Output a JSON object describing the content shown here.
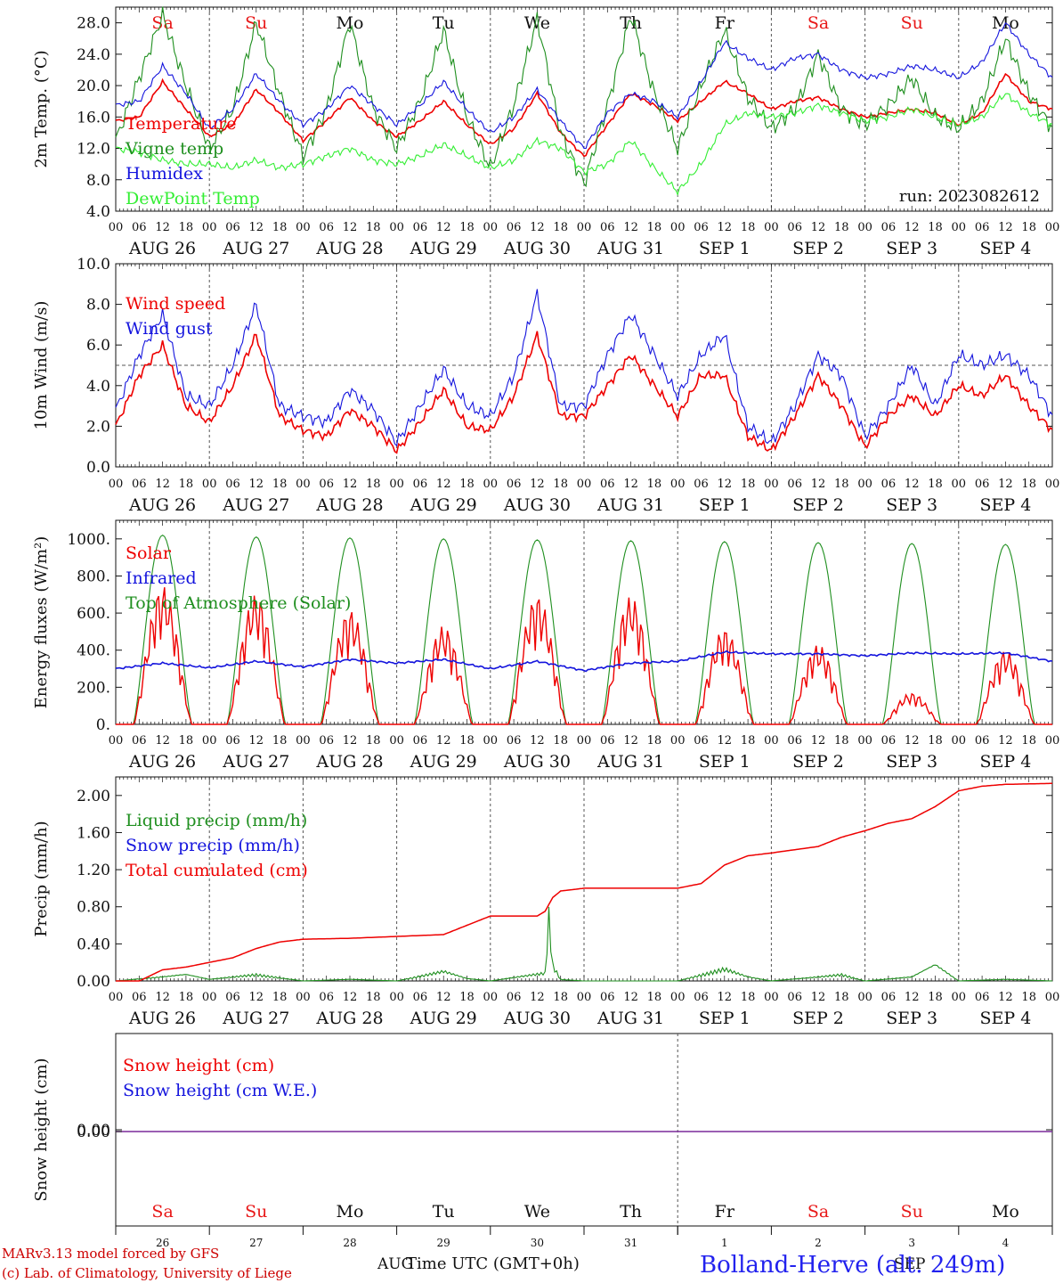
{
  "colors": {
    "red": "#ee0000",
    "green": "#1f8f1f",
    "lightgreen": "#33ee33",
    "blue": "#1414dd",
    "purple": "#7a2a9a",
    "weekend": "#e81818",
    "weekday": "#111111",
    "footer_red": "#cc0000",
    "station": "#2222ee"
  },
  "date_labels": [
    "AUG 26",
    "AUG 27",
    "AUG 28",
    "AUG 29",
    "AUG 30",
    "AUG 31",
    "SEP  1",
    "SEP  2",
    "SEP  3",
    "SEP  4"
  ],
  "hour_ticks": [
    "00",
    "06",
    "12",
    "18"
  ],
  "weekdays": [
    {
      "label": "Sa",
      "weekend": true
    },
    {
      "label": "Su",
      "weekend": true
    },
    {
      "label": "Mo",
      "weekend": false
    },
    {
      "label": "Tu",
      "weekend": false
    },
    {
      "label": "We",
      "weekend": false
    },
    {
      "label": "Th",
      "weekend": false
    },
    {
      "label": "Fr",
      "weekend": false
    },
    {
      "label": "Sa",
      "weekend": true
    },
    {
      "label": "Su",
      "weekend": true
    },
    {
      "label": "Mo",
      "weekend": false
    }
  ],
  "bottom_days": [
    "26",
    "27",
    "28",
    "29",
    "30",
    "31",
    "1",
    "2",
    "3",
    "4"
  ],
  "bottom_months": {
    "left": "AUG",
    "right": "SEP"
  },
  "footer": {
    "model": "MARv3.13 model forced by GFS",
    "copyright": "(c) Lab. of Climatology, University of Liege",
    "xlabel": "Time UTC (GMT+0h)",
    "station": "Bolland-Herve (alt. 249m)"
  },
  "chart_data": [
    {
      "type": "line",
      "ylabel": "2m Temp. (°C)",
      "ylim": [
        4,
        30
      ],
      "yticks": [
        "4.0",
        "8.0",
        "12.0",
        "16.0",
        "20.0",
        "24.0",
        "28.0"
      ],
      "annotation": "run: 2023082612",
      "x_hours": [
        0,
        6,
        12,
        18,
        24,
        30,
        36,
        42,
        48,
        54,
        60,
        66,
        72,
        78,
        84,
        90,
        96,
        102,
        108,
        114,
        120,
        126,
        132,
        138,
        144,
        150,
        156,
        162,
        168,
        174,
        180,
        186,
        192,
        198,
        204,
        210,
        216,
        222,
        228,
        234,
        240
      ],
      "series": [
        {
          "name": "Temperature",
          "color": "red",
          "values": [
            15.5,
            16.0,
            20.5,
            17.0,
            13.5,
            15.0,
            19.5,
            16.5,
            13.0,
            15.5,
            18.5,
            15.5,
            13.5,
            15.5,
            18.0,
            15.0,
            12.5,
            14.5,
            19.0,
            14.0,
            11.0,
            15.0,
            19.0,
            17.5,
            15.5,
            18.0,
            20.5,
            19.0,
            17.0,
            18.0,
            18.5,
            17.0,
            16.0,
            16.5,
            17.0,
            16.5,
            15.0,
            16.5,
            21.5,
            18.0,
            17.0
          ]
        },
        {
          "name": "Vigne temp",
          "color": "green",
          "values": [
            13.0,
            21.0,
            29.0,
            20.0,
            12.0,
            17.0,
            28.0,
            19.0,
            11.0,
            17.0,
            28.0,
            17.0,
            12.0,
            18.0,
            27.0,
            16.0,
            9.5,
            17.5,
            28.5,
            14.0,
            7.5,
            17.5,
            29.0,
            19.0,
            12.0,
            20.0,
            27.0,
            18.5,
            14.5,
            17.0,
            24.0,
            17.0,
            15.0,
            17.5,
            21.0,
            16.0,
            14.5,
            18.0,
            26.0,
            19.0,
            14.5
          ]
        },
        {
          "name": "Humidex",
          "color": "blue",
          "values": [
            17.5,
            18.0,
            22.5,
            19.0,
            14.5,
            17.0,
            21.5,
            18.0,
            15.0,
            17.0,
            20.0,
            17.5,
            15.0,
            17.5,
            20.5,
            17.0,
            14.0,
            16.0,
            19.5,
            15.5,
            12.0,
            16.5,
            19.0,
            18.0,
            16.0,
            20.5,
            25.5,
            23.5,
            22.0,
            23.5,
            24.0,
            22.0,
            21.0,
            21.5,
            22.5,
            22.0,
            21.0,
            23.0,
            28.0,
            24.0,
            21.0
          ]
        },
        {
          "name": "DewPoint Temp",
          "color": "lightgreen",
          "values": [
            12.0,
            11.5,
            10.5,
            10.0,
            10.0,
            9.5,
            10.5,
            9.5,
            10.0,
            11.0,
            12.0,
            10.5,
            10.0,
            11.0,
            12.5,
            11.0,
            9.5,
            10.5,
            13.0,
            12.0,
            9.0,
            10.0,
            13.0,
            9.5,
            6.5,
            10.0,
            15.0,
            16.5,
            16.0,
            16.5,
            17.5,
            16.5,
            15.5,
            16.0,
            17.0,
            16.0,
            15.0,
            16.0,
            19.0,
            16.5,
            15.0
          ]
        }
      ]
    },
    {
      "type": "line",
      "ylabel": "10m Wind (m/s)",
      "ylim": [
        0,
        10
      ],
      "yticks": [
        "0.0",
        "2.0",
        "4.0",
        "6.0",
        "8.0",
        "10.0"
      ],
      "reference_line": 5.0,
      "x_hours": [
        0,
        6,
        12,
        18,
        24,
        30,
        36,
        42,
        48,
        54,
        60,
        66,
        72,
        78,
        84,
        90,
        96,
        102,
        108,
        114,
        120,
        126,
        132,
        138,
        144,
        150,
        156,
        162,
        168,
        174,
        180,
        186,
        192,
        198,
        204,
        210,
        216,
        222,
        228,
        234,
        240
      ],
      "series": [
        {
          "name": "Wind speed",
          "color": "red",
          "values": [
            2.0,
            4.5,
            6.0,
            3.0,
            2.2,
            4.0,
            6.5,
            2.5,
            1.8,
            1.5,
            2.8,
            2.0,
            0.8,
            2.2,
            3.8,
            2.0,
            1.8,
            3.5,
            6.5,
            2.5,
            2.5,
            4.0,
            5.5,
            4.0,
            2.5,
            4.5,
            4.5,
            1.5,
            0.8,
            2.5,
            4.5,
            3.0,
            1.0,
            2.5,
            3.5,
            2.5,
            4.0,
            3.5,
            4.5,
            3.0,
            1.8
          ]
        },
        {
          "name": "Wind gust",
          "color": "blue",
          "values": [
            2.8,
            5.5,
            7.5,
            3.5,
            3.0,
            5.0,
            8.0,
            3.0,
            2.5,
            2.2,
            3.8,
            2.8,
            1.2,
            3.0,
            4.8,
            3.0,
            2.5,
            4.5,
            8.5,
            3.0,
            3.0,
            5.5,
            7.5,
            5.5,
            3.5,
            5.5,
            6.5,
            2.0,
            1.2,
            3.0,
            5.5,
            4.5,
            1.5,
            3.0,
            5.0,
            3.0,
            5.5,
            5.0,
            5.5,
            4.5,
            2.5
          ]
        }
      ]
    },
    {
      "type": "line",
      "ylabel": "Energy fluxes (W/m²)",
      "ylim": [
        0,
        1100
      ],
      "yticks": [
        "0.",
        "200.",
        "400.",
        "600.",
        "800.",
        "1000."
      ],
      "series": [
        {
          "name": "Solar",
          "color": "red",
          "peaks": [
            750,
            700,
            620,
            530,
            700,
            690,
            520,
            430,
            170,
            400
          ]
        },
        {
          "name": "Infrared",
          "color": "blue",
          "x_hours": [
            0,
            12,
            24,
            36,
            48,
            60,
            72,
            84,
            96,
            108,
            120,
            132,
            144,
            156,
            168,
            180,
            192,
            204,
            216,
            228,
            240
          ],
          "values": [
            300,
            330,
            305,
            340,
            310,
            350,
            330,
            350,
            300,
            340,
            290,
            330,
            340,
            390,
            380,
            380,
            370,
            385,
            380,
            385,
            340
          ]
        },
        {
          "name": "Top of Atmosphere (Solar)",
          "color": "green",
          "peaks": [
            1020,
            1010,
            1005,
            1000,
            995,
            990,
            985,
            980,
            975,
            970
          ]
        }
      ]
    },
    {
      "type": "line",
      "ylabel": "Precip (mm/h)",
      "ylim": [
        0,
        2.2
      ],
      "yticks": [
        "0.00",
        "0.40",
        "0.80",
        "1.20",
        "1.60",
        "2.00"
      ],
      "series": [
        {
          "name": "Liquid precip (mm/h)",
          "color": "green",
          "x_hours": [
            0,
            12,
            18,
            24,
            36,
            42,
            48,
            60,
            72,
            84,
            90,
            96,
            110,
            111,
            112,
            114,
            120,
            144,
            156,
            162,
            168,
            180,
            186,
            192,
            204,
            210,
            216,
            228,
            240
          ],
          "values": [
            0,
            0.05,
            0.08,
            0.02,
            0.08,
            0.04,
            0,
            0.02,
            0,
            0.12,
            0.03,
            0,
            0.1,
            0.8,
            0.2,
            0.02,
            0,
            0,
            0.15,
            0.05,
            0,
            0.05,
            0.08,
            0,
            0.05,
            0.2,
            0,
            0.02,
            0
          ]
        },
        {
          "name": "Snow precip (mm/h)",
          "color": "blue",
          "values": []
        },
        {
          "name": "Total cumulated (cm)",
          "color": "red",
          "x_hours": [
            0,
            6,
            12,
            18,
            24,
            30,
            36,
            42,
            48,
            60,
            72,
            84,
            90,
            96,
            108,
            110,
            112,
            114,
            120,
            144,
            150,
            156,
            162,
            168,
            180,
            186,
            192,
            198,
            204,
            210,
            216,
            222,
            228,
            240
          ],
          "values": [
            0,
            0,
            0.12,
            0.15,
            0.2,
            0.25,
            0.35,
            0.42,
            0.45,
            0.46,
            0.48,
            0.5,
            0.6,
            0.7,
            0.7,
            0.75,
            0.9,
            0.97,
            1.0,
            1.0,
            1.05,
            1.25,
            1.35,
            1.38,
            1.45,
            1.55,
            1.62,
            1.7,
            1.75,
            1.88,
            2.05,
            2.1,
            2.12,
            2.13
          ]
        }
      ]
    },
    {
      "type": "line",
      "ylabel": "Snow height (cm)",
      "yticks": [
        "0.00"
      ],
      "series": [
        {
          "name": "Snow height (cm)",
          "color": "red",
          "values": [
            0,
            0
          ]
        },
        {
          "name": "Snow height (cm W.E.)",
          "color": "blue",
          "values": [
            0,
            0
          ]
        }
      ]
    }
  ]
}
